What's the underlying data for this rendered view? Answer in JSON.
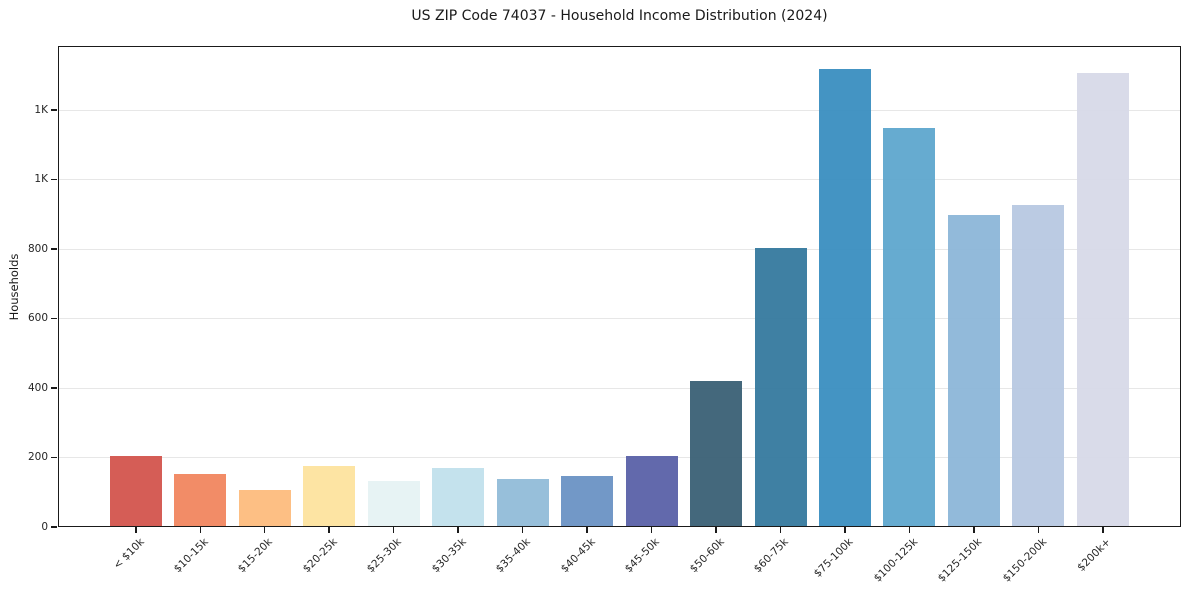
{
  "chart_data": {
    "type": "bar",
    "title": "US ZIP Code 74037 - Household Income Distribution (2024)",
    "xlabel": "",
    "ylabel": "Households",
    "categories": [
      "< $10k",
      "$10-15k",
      "$15-20k",
      "$20-25k",
      "$25-30k",
      "$30-35k",
      "$35-40k",
      "$40-45k",
      "$45-50k",
      "$50-60k",
      "$60-75k",
      "$75-100k",
      "$100-125k",
      "$125-150k",
      "$150-200k",
      "$200k+"
    ],
    "values": [
      205,
      152,
      107,
      177,
      133,
      169,
      137,
      147,
      204,
      421,
      803,
      1320,
      1150,
      897,
      928,
      1307
    ],
    "bar_colors": [
      "#d3544d",
      "#f1865f",
      "#fdbc7d",
      "#fde39e",
      "#e6f2f3",
      "#c1e0ec",
      "#91bcd8",
      "#6a92c4",
      "#5a61a8",
      "#3a6075",
      "#35799e",
      "#3a8ec0",
      "#5ea7cd",
      "#8cb6d8",
      "#b7c8e1",
      "#d7d9e8"
    ],
    "ylim": [
      0,
      1385
    ],
    "ytick_values": [
      0,
      200,
      400,
      600,
      800,
      1000,
      1200
    ],
    "ytick_labels": [
      "0",
      "200",
      "400",
      "600",
      "800",
      "1K",
      "1K"
    ],
    "grid": "horizontal",
    "legend": "none",
    "background_color": "#ffffff",
    "spine_color": "#1a1a1a",
    "grid_color": "#e7e7e7",
    "text_color": "#262626"
  }
}
